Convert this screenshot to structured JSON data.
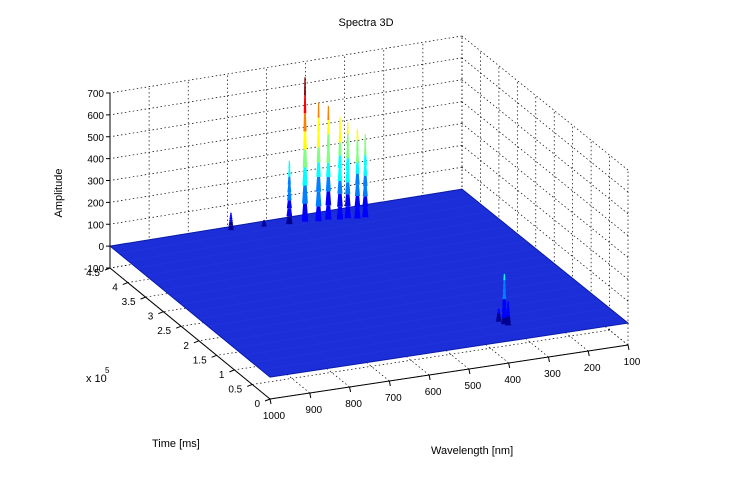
{
  "chart_data": {
    "type": "surface",
    "title": "Spectra 3D",
    "xlabel": "Wavelength [nm]",
    "ylabel": "Time [ms]",
    "zlabel": "Amplitude",
    "y_exponent_label": "x 10",
    "y_exponent_power": "5",
    "xlim": [
      100,
      1000
    ],
    "ylim": [
      0,
      4.5
    ],
    "zlim": [
      -100,
      700
    ],
    "x_ticks": [
      "100",
      "200",
      "300",
      "400",
      "500",
      "600",
      "700",
      "800",
      "900",
      "1000"
    ],
    "y_ticks": [
      "0",
      "0.5",
      "1",
      "1.5",
      "2",
      "2.5",
      "3",
      "3.5",
      "4",
      "4.5"
    ],
    "z_ticks": [
      "-100",
      "0",
      "100",
      "200",
      "300",
      "400",
      "500",
      "600",
      "700"
    ],
    "grid": true,
    "colormap": [
      "#00008f",
      "#0000ff",
      "#0080ff",
      "#00ffff",
      "#80ff80",
      "#ffff00",
      "#ff8000",
      "#ff0000",
      "#800000"
    ],
    "surface_color": "#1c2ed8",
    "peaks": [
      {
        "wavelength": 700,
        "time": 4.4,
        "amplitude": 80
      },
      {
        "wavelength": 620,
        "time": 4.35,
        "amplitude": 30
      },
      {
        "wavelength": 560,
        "time": 4.3,
        "amplitude": 290
      },
      {
        "wavelength": 520,
        "time": 4.3,
        "amplitude": 660
      },
      {
        "wavelength": 490,
        "time": 4.25,
        "amplitude": 540
      },
      {
        "wavelength": 465,
        "time": 4.25,
        "amplitude": 520
      },
      {
        "wavelength": 440,
        "time": 4.2,
        "amplitude": 470
      },
      {
        "wavelength": 420,
        "time": 4.2,
        "amplitude": 440
      },
      {
        "wavelength": 400,
        "time": 4.15,
        "amplitude": 410
      },
      {
        "wavelength": 380,
        "time": 4.15,
        "amplitude": 380
      },
      {
        "wavelength": 365,
        "time": 0.5,
        "amplitude": 230
      },
      {
        "wavelength": 360,
        "time": 0.45,
        "amplitude": 110
      },
      {
        "wavelength": 370,
        "time": 0.6,
        "amplitude": 60
      }
    ]
  }
}
